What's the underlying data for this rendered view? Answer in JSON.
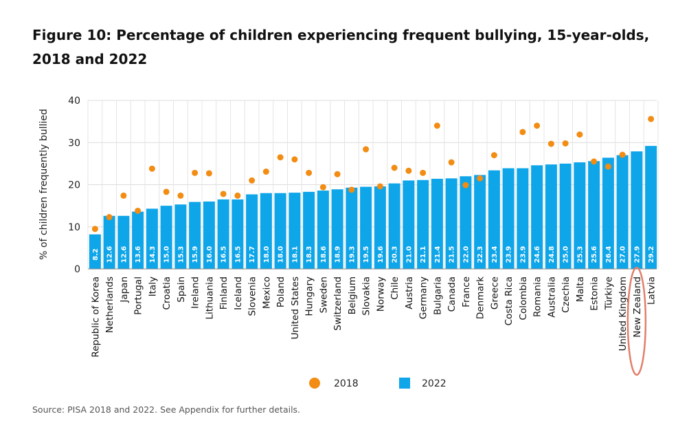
{
  "title": "Figure 10: Percentage of children experiencing frequent bullying, 15-year-olds, 2018 and 2022",
  "source": "Source: PISA 2018 and 2022. See Appendix for further details.",
  "colors": {
    "bar2022": "#0ea5e9",
    "dot2018": "#f28c13",
    "highlight": "#e07f6a"
  },
  "chart_data": {
    "type": "bar",
    "title": "Figure 10: Percentage of children experiencing frequent bullying, 15-year-olds, 2018 and 2022",
    "ylabel": "% of children frequently bullied",
    "xlabel": "",
    "ylim": [
      0,
      40
    ],
    "yticks": [
      0,
      10,
      20,
      30,
      40
    ],
    "grid": "horizontal and vertical",
    "legend": "bottom",
    "categories": [
      "Republic of Korea",
      "Netherlands",
      "Japan",
      "Portugal",
      "Italy",
      "Croatia",
      "Spain",
      "Ireland",
      "Lithuania",
      "Finland",
      "Iceland",
      "Slovenia",
      "Mexico",
      "Poland",
      "United States",
      "Hungary",
      "Sweden",
      "Switzerland",
      "Belgium",
      "Slovakia",
      "Norway",
      "Chile",
      "Austria",
      "Germany",
      "Bulgaria",
      "Canada",
      "France",
      "Denmark",
      "Greece",
      "Costa Rica",
      "Colombia",
      "Romania",
      "Australia",
      "Czechia",
      "Malta",
      "Estonia",
      "Türkiye",
      "United Kingdom",
      "New Zealand",
      "Latvia"
    ],
    "series": [
      {
        "name": "2022",
        "type": "bar",
        "values": [
          8.2,
          12.6,
          12.6,
          13.6,
          14.3,
          15.0,
          15.3,
          15.9,
          16.0,
          16.5,
          16.5,
          17.7,
          18.0,
          18.0,
          18.1,
          18.3,
          18.6,
          18.9,
          19.3,
          19.5,
          19.6,
          20.3,
          21.0,
          21.1,
          21.4,
          21.5,
          22.0,
          22.3,
          23.4,
          23.9,
          23.9,
          24.6,
          24.8,
          25.0,
          25.3,
          25.6,
          26.4,
          27.0,
          27.9,
          29.2
        ],
        "value_labels": [
          "8.2",
          "12.6",
          "12.6",
          "13.6",
          "14.3",
          "15.0",
          "15.3",
          "15.9",
          "16.0",
          "16.5",
          "16.5",
          "17.7",
          "18.0",
          "18.0",
          "18.1",
          "18.3",
          "18.6",
          "18.9",
          "19.3",
          "19.5",
          "19.6",
          "20.3",
          "21.0",
          "21.1",
          "21.4",
          "21.5",
          "22.0",
          "22.3",
          "23.4",
          "23.9",
          "23.9",
          "24.6",
          "24.8",
          "25.0",
          "25.3",
          "25.6",
          "26.4",
          "27.0",
          "27.9",
          "29.2"
        ]
      },
      {
        "name": "2018",
        "type": "scatter",
        "values": [
          9.5,
          12.3,
          17.4,
          13.8,
          23.8,
          18.3,
          17.4,
          22.8,
          22.7,
          17.8,
          17.4,
          21.0,
          23.1,
          26.5,
          26.0,
          22.8,
          19.4,
          22.5,
          18.8,
          28.4,
          19.6,
          24.0,
          23.3,
          22.8,
          34.0,
          25.3,
          19.9,
          21.5,
          27.0,
          null,
          32.5,
          34.0,
          29.7,
          29.8,
          31.9,
          25.5,
          24.3,
          27.1,
          null,
          35.6
        ]
      }
    ],
    "highlight": "New Zealand"
  }
}
